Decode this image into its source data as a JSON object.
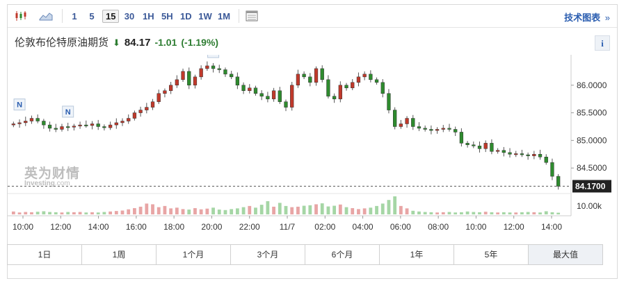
{
  "toolbar": {
    "intervals": [
      "1",
      "5",
      "15",
      "30",
      "1H",
      "5H",
      "1D",
      "1W",
      "1M"
    ],
    "active_interval": "15",
    "tech_chart_label": "技术图表",
    "tech_chart_arrow": "»"
  },
  "instrument": {
    "name": "伦敦布伦特原油期货",
    "price": "84.17",
    "change": "-1.01",
    "change_pct": "(-1.19%)",
    "info_label": "i",
    "down_color": "#2e7d32",
    "up_color": "#c62828"
  },
  "watermark": {
    "cn": "英为财情",
    "en": "Investing",
    "en_suffix": ".com"
  },
  "chart_data": {
    "type": "candlestick",
    "y_ticks": [
      "86.0000",
      "85.5000",
      "85.0000",
      "84.5000"
    ],
    "y_tick_values": [
      86.0,
      85.5,
      85.0,
      84.5
    ],
    "last_price_label": "84.1700",
    "last_price": 84.17,
    "ylim": [
      84.1,
      86.55
    ],
    "x_ticks": [
      "10:00",
      "12:00",
      "14:00",
      "16:00",
      "18:00",
      "20:00",
      "22:00",
      "11/7",
      "02:00",
      "04:00",
      "06:00",
      "08:00",
      "10:00",
      "12:00",
      "14:00"
    ],
    "volume_tick": "10.00k",
    "news_markers": [
      "N",
      "N",
      "N"
    ],
    "candles_close": [
      85.3,
      85.32,
      85.35,
      85.4,
      85.35,
      85.28,
      85.22,
      85.2,
      85.25,
      85.24,
      85.26,
      85.28,
      85.27,
      85.3,
      85.25,
      85.23,
      85.28,
      85.32,
      85.35,
      85.4,
      85.5,
      85.55,
      85.6,
      85.7,
      85.85,
      85.9,
      86.0,
      86.1,
      86.25,
      86.0,
      86.15,
      86.3,
      86.35,
      86.3,
      86.28,
      86.2,
      86.15,
      86.0,
      85.9,
      85.95,
      85.85,
      85.8,
      85.75,
      85.9,
      85.7,
      85.6,
      86.0,
      86.2,
      86.15,
      86.05,
      86.3,
      86.1,
      85.8,
      85.75,
      86.0,
      85.95,
      86.05,
      86.15,
      86.2,
      86.1,
      86.05,
      85.85,
      85.55,
      85.25,
      85.3,
      85.4,
      85.25,
      85.22,
      85.2,
      85.18,
      85.2,
      85.22,
      85.2,
      85.15,
      84.95,
      84.92,
      84.9,
      84.85,
      84.95,
      84.8,
      84.82,
      84.78,
      84.75,
      84.76,
      84.74,
      84.72,
      84.75,
      84.7,
      84.6,
      84.35,
      84.17
    ],
    "volumes": [
      1.2,
      0.8,
      1.0,
      0.9,
      1.1,
      1.3,
      1.0,
      0.9,
      0.8,
      1.0,
      0.9,
      1.0,
      0.8,
      0.9,
      0.8,
      1.0,
      1.2,
      1.4,
      1.6,
      2.1,
      2.6,
      3.2,
      4.5,
      4.2,
      3.0,
      3.5,
      2.5,
      2.8,
      2.2,
      2.0,
      2.6,
      2.1,
      2.4,
      2.8,
      2.0,
      1.8,
      2.2,
      2.5,
      3.0,
      3.5,
      2.8,
      4.0,
      5.5,
      3.2,
      4.8,
      3.5,
      3.0,
      3.2,
      3.6,
      3.8,
      4.2,
      4.6,
      3.3,
      3.6,
      4.1,
      3.0,
      2.6,
      2.2,
      2.5,
      2.8,
      3.5,
      4.5,
      6.0,
      7.5,
      3.5,
      2.5,
      1.5,
      1.2,
      1.0,
      0.9,
      0.8,
      0.9,
      1.0,
      0.8,
      0.9,
      1.2,
      1.0,
      0.9,
      1.1,
      0.9,
      0.8,
      0.9,
      0.8,
      0.8,
      0.9,
      1.0,
      0.9,
      0.8,
      1.3,
      0.9,
      0.7
    ],
    "colors": {
      "up": "#c0392b",
      "down": "#2e8b2e",
      "volume_up": "#e8a5a5",
      "volume_down": "#a5d6a5"
    }
  },
  "range_buttons": [
    "1日",
    "1周",
    "1个月",
    "3个月",
    "6个月",
    "1年",
    "5年",
    "最大值"
  ]
}
